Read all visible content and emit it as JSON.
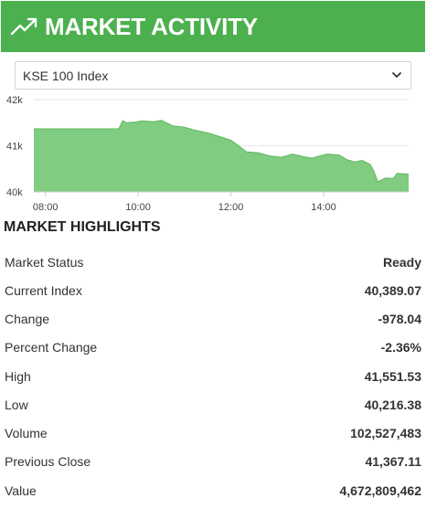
{
  "header": {
    "title": "MARKET ACTIVITY",
    "icon": "trending-up-icon",
    "background": "#4cb04f"
  },
  "index_select": {
    "selected": "KSE 100 Index"
  },
  "chart_data": {
    "type": "area",
    "x_ticks": [
      "08:00",
      "10:00",
      "12:00",
      "14:00"
    ],
    "y_ticks": [
      "40k",
      "41k",
      "42k"
    ],
    "ylim": [
      40000,
      42000
    ],
    "xlim": [
      "07:45",
      "15:50"
    ],
    "fill_color": "#80cc80",
    "line_color": "#5cb85c",
    "x": [
      "07:45",
      "09:35",
      "09:40",
      "09:45",
      "09:55",
      "10:05",
      "10:20",
      "10:30",
      "10:45",
      "11:00",
      "11:15",
      "11:30",
      "11:45",
      "12:00",
      "12:10",
      "12:20",
      "12:35",
      "12:50",
      "13:05",
      "13:20",
      "13:35",
      "13:45",
      "13:55",
      "14:05",
      "14:20",
      "14:30",
      "14:40",
      "14:50",
      "15:00",
      "15:05",
      "15:10",
      "15:20",
      "15:30",
      "15:35",
      "15:45",
      "15:50"
    ],
    "y": [
      41367,
      41367,
      41540,
      41500,
      41510,
      41540,
      41520,
      41551,
      41430,
      41400,
      41330,
      41280,
      41200,
      41120,
      41000,
      40870,
      40850,
      40780,
      40750,
      40820,
      40760,
      40730,
      40780,
      40820,
      40800,
      40700,
      40650,
      40680,
      40600,
      40450,
      40216,
      40300,
      40290,
      40400,
      40389,
      40389
    ]
  },
  "highlights": {
    "title": "MARKET HIGHLIGHTS",
    "rows": [
      {
        "label": "Market Status",
        "value": "Ready"
      },
      {
        "label": "Current Index",
        "value": "40,389.07"
      },
      {
        "label": "Change",
        "value": "-978.04"
      },
      {
        "label": "Percent Change",
        "value": "-2.36%"
      },
      {
        "label": "High",
        "value": "41,551.53"
      },
      {
        "label": "Low",
        "value": "40,216.38"
      },
      {
        "label": "Volume",
        "value": "102,527,483"
      },
      {
        "label": "Previous Close",
        "value": "41,367.11"
      },
      {
        "label": "Value",
        "value": "4,672,809,462"
      }
    ]
  }
}
